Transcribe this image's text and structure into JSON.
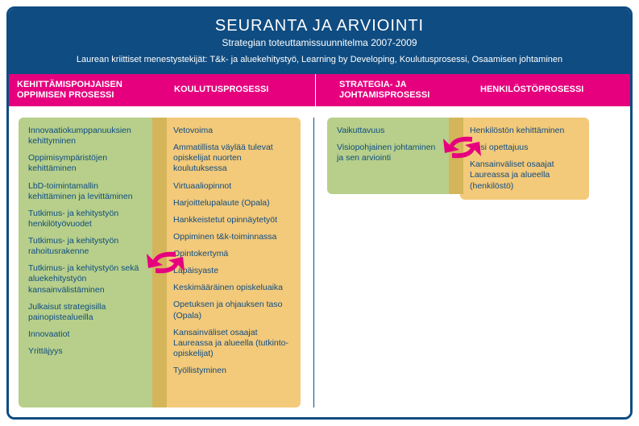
{
  "header": {
    "title": "SEURANTA JA ARVIOINTI",
    "subtitle": "Strategian toteuttamissuunnitelma 2007-2009",
    "critline": "Laurean kriittiset menestystekijät: T&k- ja aluekehitystyö, Learning by Developing, Koulutusprosessi, Osaamisen johtaminen"
  },
  "columns": {
    "h1": "KEHITTÄMISPOHJAISEN OPPIMISEN PROSESSI",
    "h2": "KOULUTUSPROSESSI",
    "h3": "STRATEGIA- JA JOHTAMISPROSESSI",
    "h4": "HENKILÖSTÖPROSESSI"
  },
  "col1": [
    "Innovaatiokumppanuuksien kehittyminen",
    "Oppimisympäristöjen kehittäminen",
    "LbD-toimintamallin kehittäminen ja levittäminen",
    "Tutkimus- ja kehitystyön henkilötyövuodet",
    "Tutkimus- ja kehitystyön rahoitusrakenne",
    "Tutkimus- ja kehitystyön sekä aluekehitystyön kansainvälistäminen",
    "Julkaisut strategisilla painopistealueilla",
    "Innovaatiot",
    "Yrittäjyys"
  ],
  "col2": [
    "Vetovoima",
    "Ammatillista väylää tulevat opiskelijat nuorten koulutuksessa",
    "Virtuaaliopinnot",
    "Harjoittelupalaute (Opala)",
    "Hankkeistetut opinnäytetyöt",
    "Oppiminen t&k-toiminnassa",
    "Opintokertymä",
    "Läpäisyaste",
    "Keskimääräinen opiskeluaika",
    "Opetuksen ja ohjauksen taso (Opala)",
    "Kansainväliset osaajat Laureassa ja alueella (tutkinto-opiskelijat)",
    "Työllistyminen"
  ],
  "col3": [
    "Vaikuttavuus",
    "Visiopohjainen johtaminen ja sen arviointi"
  ],
  "col4": [
    "Henkilöstön kehittäminen",
    "Uusi opettajuus",
    "Kansainväliset osaajat Laureassa ja alueella (henkilöstö)"
  ],
  "colors": {
    "frame": "#0f4c81",
    "magenta": "#e6007e",
    "green": "#b7cf8a",
    "orange": "#f3c97a",
    "connector": "#d4b55a",
    "text": "#0f4c81",
    "arrow": "#e6007e"
  }
}
